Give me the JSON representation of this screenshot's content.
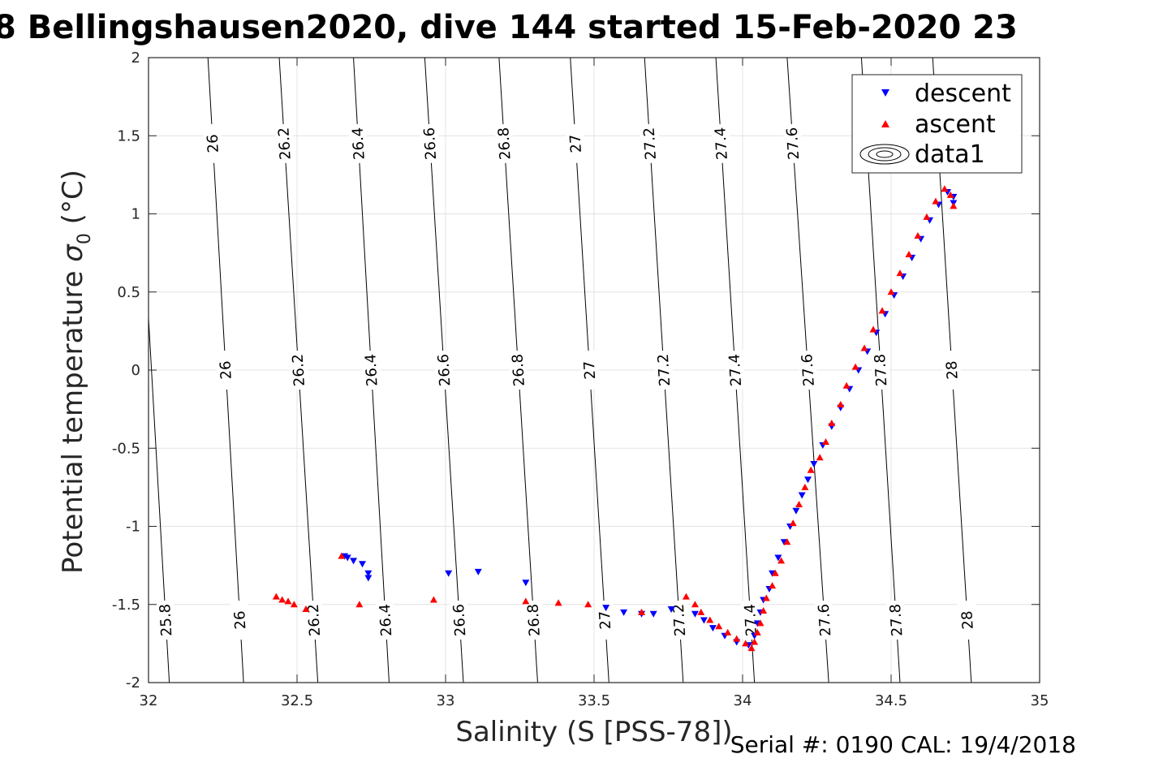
{
  "chart_data": {
    "type": "scatter",
    "title": "8 Bellingshausen2020, dive 144 started 15-Feb-2020 23",
    "xlabel": "Salinity (S [PSS-78])",
    "ylabel_main": "Potential temperature ",
    "ylabel_sigma": "σ",
    "ylabel_sub": "0",
    "ylabel_unit": " (°C)",
    "xlim": [
      32,
      35
    ],
    "ylim": [
      -2,
      2
    ],
    "xticks": [
      32,
      32.5,
      33,
      33.5,
      34,
      34.5,
      35
    ],
    "xtick_labels": [
      "32",
      "32.5",
      "33",
      "33.5",
      "34",
      "34.5",
      "35"
    ],
    "yticks": [
      -2,
      -1.5,
      -1,
      -0.5,
      0,
      0.5,
      1,
      1.5,
      2
    ],
    "ytick_labels": [
      "-2",
      "-1.5",
      "-1",
      "-0.5",
      "0",
      "0.5",
      "1",
      "1.5",
      "2"
    ],
    "grid": true,
    "legend_position": "top-right",
    "legend": [
      "descent",
      "ascent",
      "data1"
    ],
    "footer": "Serial #: 0190  CAL: 19/4/2018",
    "contours": {
      "levels": [
        25.8,
        26,
        26.2,
        26.4,
        26.6,
        26.8,
        27,
        27.2,
        27.4,
        27.6,
        27.8,
        28
      ],
      "labels": [
        "25.8",
        "26",
        "26.2",
        "26.4",
        "26.6",
        "26.8",
        "27",
        "27.2",
        "27.4",
        "27.6",
        "27.8",
        "28"
      ],
      "salinity_at_theta_minus2": [
        32.07,
        32.32,
        32.57,
        32.81,
        33.06,
        33.31,
        33.55,
        33.8,
        34.04,
        34.29,
        34.53,
        34.77
      ],
      "salinity_at_theta_2": [
        31.95,
        32.2,
        32.44,
        32.69,
        32.93,
        33.18,
        33.42,
        33.67,
        33.91,
        34.15,
        34.4,
        34.64
      ],
      "label_theta": [
        1.45,
        0,
        -1.6
      ]
    },
    "series": [
      {
        "name": "descent",
        "color": "#0000ff",
        "marker": "triangle-down",
        "x": [
          32.66,
          32.67,
          32.69,
          32.72,
          32.74,
          32.74,
          33.01,
          33.11,
          33.27,
          33.54,
          33.6,
          33.66,
          33.7,
          33.76,
          33.84,
          33.87,
          33.9,
          33.94,
          33.98,
          34.02,
          34.04,
          34.05,
          34.06,
          34.07,
          34.09,
          34.1,
          34.12,
          34.14,
          34.16,
          34.18,
          34.2,
          34.22,
          34.24,
          34.27,
          34.3,
          34.33,
          34.36,
          34.39,
          34.42,
          34.45,
          34.48,
          34.51,
          34.54,
          34.57,
          34.6,
          34.63,
          34.66,
          34.69,
          34.71,
          34.71
        ],
        "y": [
          -1.19,
          -1.2,
          -1.22,
          -1.24,
          -1.3,
          -1.33,
          -1.3,
          -1.29,
          -1.36,
          -1.52,
          -1.55,
          -1.56,
          -1.56,
          -1.53,
          -1.56,
          -1.6,
          -1.65,
          -1.7,
          -1.74,
          -1.76,
          -1.7,
          -1.62,
          -1.55,
          -1.47,
          -1.4,
          -1.3,
          -1.2,
          -1.1,
          -1.0,
          -0.9,
          -0.8,
          -0.7,
          -0.6,
          -0.48,
          -0.36,
          -0.24,
          -0.12,
          0.0,
          0.12,
          0.24,
          0.36,
          0.48,
          0.6,
          0.72,
          0.84,
          0.96,
          1.06,
          1.14,
          1.11,
          1.07
        ]
      },
      {
        "name": "ascent",
        "color": "#ff0000",
        "marker": "triangle-up",
        "x": [
          32.43,
          32.45,
          32.47,
          32.49,
          32.53,
          32.65,
          32.71,
          32.96,
          33.27,
          33.38,
          33.48,
          33.66,
          33.81,
          33.84,
          33.86,
          33.89,
          33.92,
          33.95,
          33.98,
          34.01,
          34.03,
          34.04,
          34.05,
          34.06,
          34.07,
          34.08,
          34.1,
          34.11,
          34.13,
          34.15,
          34.17,
          34.19,
          34.21,
          34.23,
          34.26,
          34.28,
          34.3,
          34.33,
          34.35,
          34.38,
          34.41,
          34.44,
          34.47,
          34.5,
          34.53,
          34.56,
          34.59,
          34.62,
          34.65,
          34.68,
          34.7,
          34.71
        ],
        "y": [
          -1.45,
          -1.47,
          -1.48,
          -1.5,
          -1.53,
          -1.19,
          -1.5,
          -1.47,
          -1.48,
          -1.49,
          -1.5,
          -1.55,
          -1.45,
          -1.5,
          -1.55,
          -1.6,
          -1.64,
          -1.68,
          -1.72,
          -1.75,
          -1.78,
          -1.74,
          -1.68,
          -1.62,
          -1.54,
          -1.46,
          -1.38,
          -1.3,
          -1.22,
          -1.1,
          -0.98,
          -0.86,
          -0.75,
          -0.64,
          -0.56,
          -0.46,
          -0.34,
          -0.22,
          -0.1,
          0.02,
          0.14,
          0.26,
          0.38,
          0.5,
          0.62,
          0.74,
          0.86,
          0.98,
          1.08,
          1.16,
          1.12,
          1.05
        ]
      }
    ]
  }
}
